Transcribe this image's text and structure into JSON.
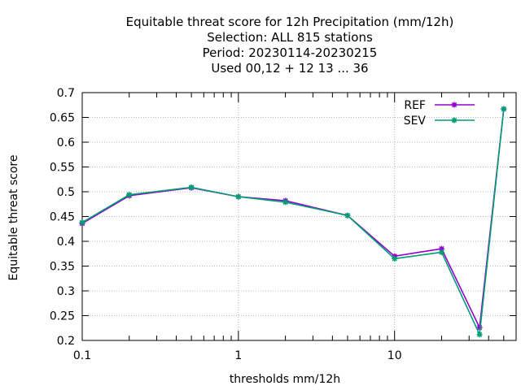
{
  "chart_data": {
    "type": "line",
    "title_lines": [
      "Equitable threat score  for 12h Precipitation (mm/12h)",
      "Selection: ALL    815 stations",
      "Period: 20230114-20230215",
      "Used  00,12  + 12 13 ... 36"
    ],
    "xlabel": "thresholds mm/12h",
    "ylabel": "Equitable threat score",
    "x_scale": "log",
    "xlim": [
      0.1,
      60
    ],
    "ylim": [
      0.2,
      0.7
    ],
    "x_tick_labels": [
      "0.1",
      "1",
      "10"
    ],
    "y_tick_labels": [
      "0.2",
      "0.25",
      "0.3",
      "0.35",
      "0.4",
      "0.45",
      "0.5",
      "0.55",
      "0.6",
      "0.65",
      "0.7"
    ],
    "grid": true,
    "legend_position": "top-right",
    "x": [
      0.1,
      0.2,
      0.5,
      1,
      2,
      5,
      10,
      20,
      35,
      50
    ],
    "series": [
      {
        "name": "REF",
        "color": "#9400d3",
        "values": [
          0.436,
          0.492,
          0.508,
          0.49,
          0.482,
          0.452,
          0.37,
          0.385,
          0.226,
          0.667
        ]
      },
      {
        "name": "SEV",
        "color": "#009e73",
        "values": [
          0.438,
          0.494,
          0.509,
          0.49,
          0.479,
          0.452,
          0.365,
          0.378,
          0.212,
          0.667
        ]
      }
    ]
  }
}
